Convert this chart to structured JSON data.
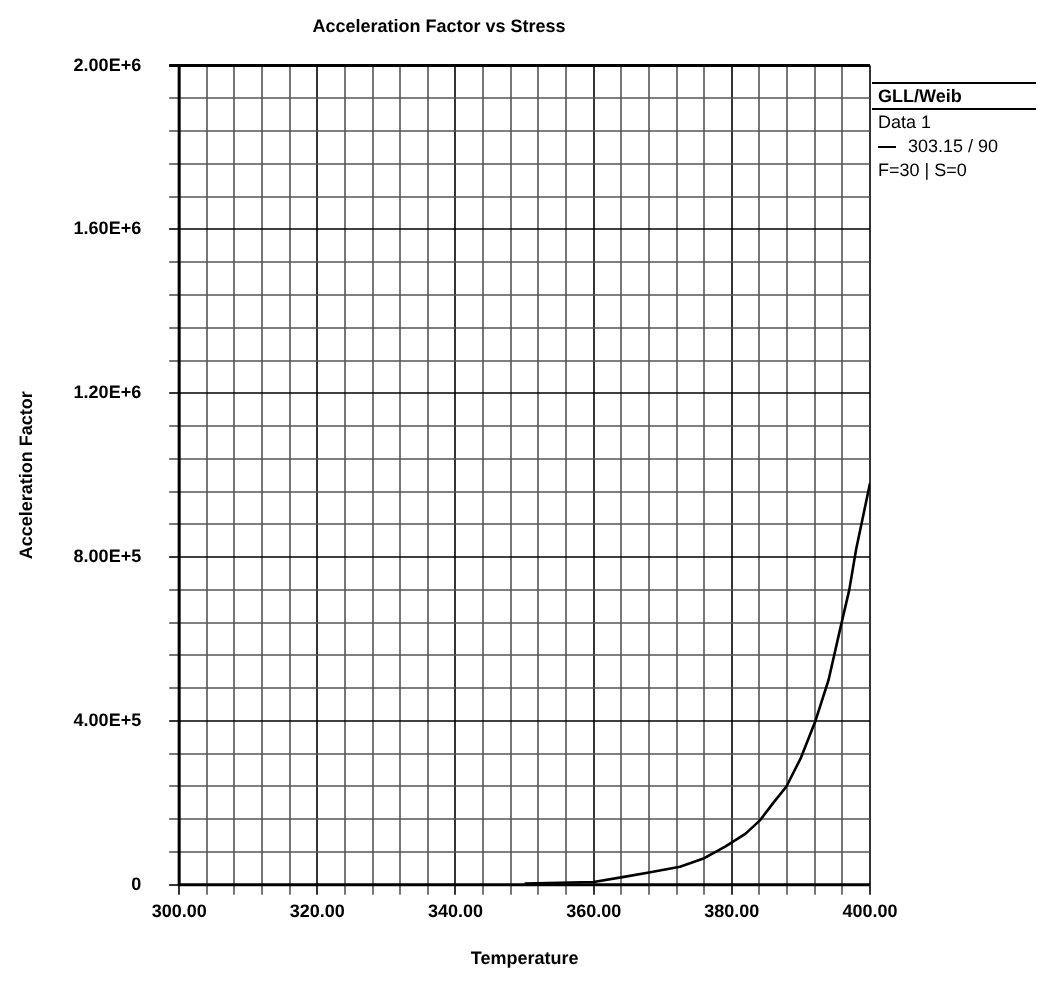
{
  "chart_data": {
    "type": "line",
    "title": "Acceleration Factor vs Stress",
    "xlabel": "Temperature",
    "ylabel": "Acceleration Factor",
    "legend_title": "GLL/Weib",
    "legend": "right",
    "grid": true,
    "marker": "none",
    "line_style": "solid",
    "annotations": [
      "Data 1",
      "F=30 | S=0"
    ],
    "xlim": [
      300,
      400
    ],
    "ylim": [
      0,
      2000000
    ],
    "xticks": [
      {
        "value": 300,
        "label": "300.00"
      },
      {
        "value": 304,
        "label": null
      },
      {
        "value": 308,
        "label": null
      },
      {
        "value": 312,
        "label": null
      },
      {
        "value": 316,
        "label": null
      },
      {
        "value": 320,
        "label": "320.00"
      },
      {
        "value": 324,
        "label": null
      },
      {
        "value": 328,
        "label": null
      },
      {
        "value": 332,
        "label": null
      },
      {
        "value": 336,
        "label": null
      },
      {
        "value": 340,
        "label": "340.00"
      },
      {
        "value": 344,
        "label": null
      },
      {
        "value": 348,
        "label": null
      },
      {
        "value": 352,
        "label": null
      },
      {
        "value": 356,
        "label": null
      },
      {
        "value": 360,
        "label": "360.00"
      },
      {
        "value": 364,
        "label": null
      },
      {
        "value": 368,
        "label": null
      },
      {
        "value": 372,
        "label": null
      },
      {
        "value": 376,
        "label": null
      },
      {
        "value": 380,
        "label": "380.00"
      },
      {
        "value": 384,
        "label": null
      },
      {
        "value": 388,
        "label": null
      },
      {
        "value": 392,
        "label": null
      },
      {
        "value": 396,
        "label": null
      },
      {
        "value": 400,
        "label": "400.00"
      }
    ],
    "yticks": [
      0,
      {
        "value": 80000,
        "label": null
      },
      {
        "value": 160000,
        "label": null
      },
      {
        "value": 240000,
        "label": null
      },
      {
        "value": 320000,
        "label": null
      },
      {
        "value": 400000,
        "label": "4.00E+5"
      },
      {
        "value": 480000,
        "label": null
      },
      {
        "value": 560000,
        "label": null
      },
      {
        "value": 640000,
        "label": null
      },
      {
        "value": 720000,
        "label": null
      },
      {
        "value": 800000,
        "label": "8.00E+5"
      },
      {
        "value": 880000,
        "label": null
      },
      {
        "value": 960000,
        "label": null
      },
      {
        "value": 1040000,
        "label": null
      },
      {
        "value": 1120000,
        "label": null
      },
      {
        "value": 1200000,
        "label": "1.20E+6"
      },
      {
        "value": 1280000,
        "label": null
      },
      {
        "value": 1360000,
        "label": null
      },
      {
        "value": 1440000,
        "label": null
      },
      {
        "value": 1520000,
        "label": null
      },
      {
        "value": 1600000,
        "label": "1.60E+6"
      },
      {
        "value": 1680000,
        "label": null
      },
      {
        "value": 1760000,
        "label": null
      },
      {
        "value": 1840000,
        "label": null
      },
      {
        "value": 1920000,
        "label": null
      },
      {
        "value": 2000000,
        "label": "2.00E+6"
      }
    ],
    "series": [
      {
        "name": "303.15 / 90",
        "color": "#000000",
        "x": [
          350,
          355,
          360,
          364.6,
          368,
          372.5,
          376,
          379.1,
          382,
          384.1,
          386,
          387.9,
          390,
          392.1,
          394,
          395.7,
          397,
          398,
          399,
          400
        ],
        "values": [
          3000,
          5000,
          7000,
          20000,
          30000,
          44000,
          65000,
          94000,
          125000,
          158000,
          200000,
          240000,
          310000,
          400000,
          500000,
          626000,
          720000,
          820000,
          900000,
          980000
        ]
      }
    ]
  }
}
